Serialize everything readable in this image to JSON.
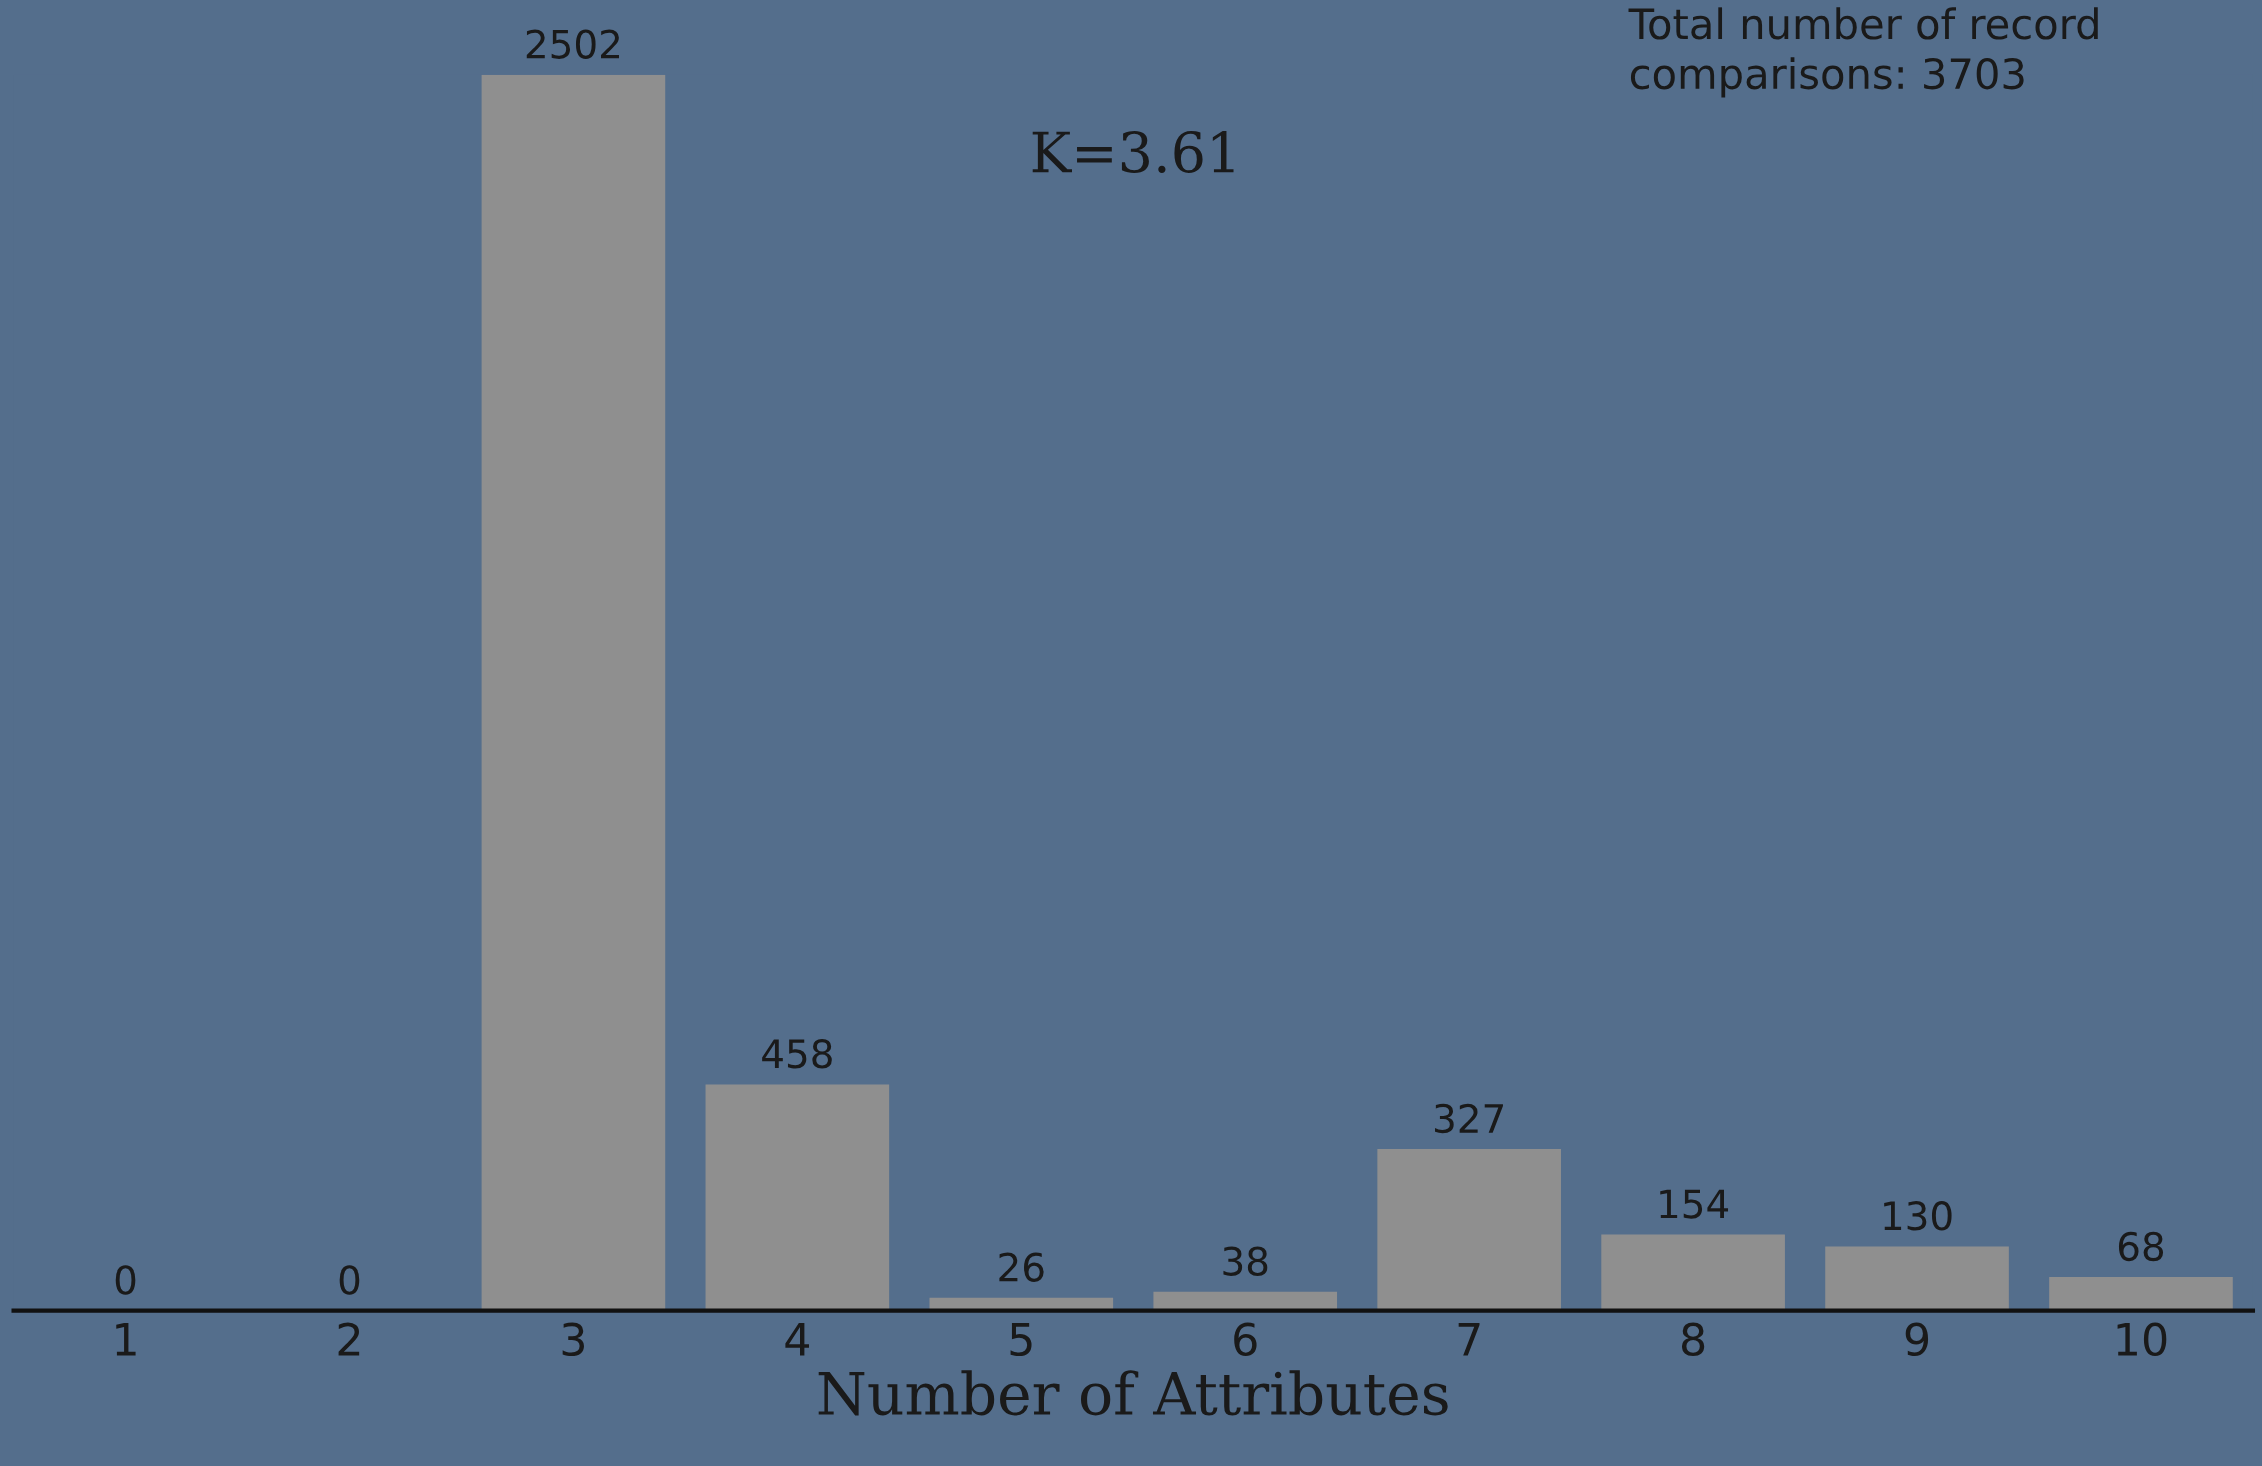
{
  "chart_data": {
    "type": "bar",
    "xlabel": "Number of Attributes",
    "categories": [
      "1",
      "2",
      "3",
      "4",
      "5",
      "6",
      "7",
      "8",
      "9",
      "10"
    ],
    "values": [
      0,
      0,
      2502,
      458,
      26,
      38,
      327,
      154,
      130,
      68
    ],
    "color": "#8f8f8f",
    "data_labels": true,
    "grid": false,
    "legend": false,
    "tick_labels": "x",
    "annotations": [
      "K=3.61",
      "Total number of record\ncomparisons: 3703"
    ]
  }
}
